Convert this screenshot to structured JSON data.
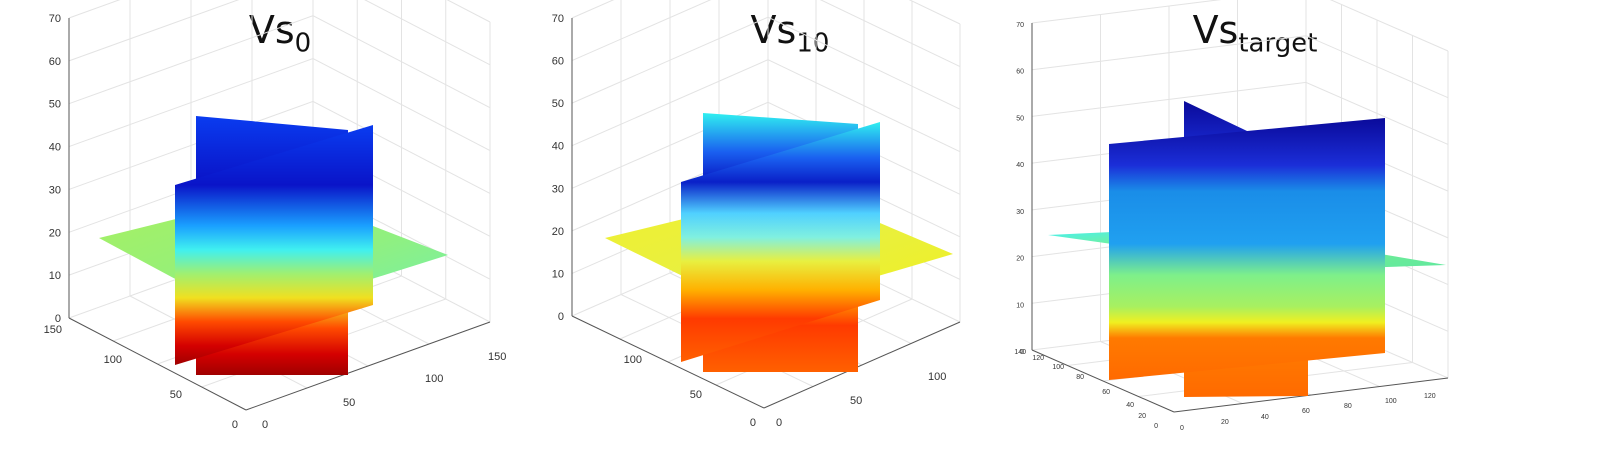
{
  "chart_data": [
    {
      "type": "3d-slice",
      "title_base": "Vs",
      "title_sub": "0",
      "z_ticks": [
        "0",
        "10",
        "20",
        "30",
        "40",
        "50",
        "60",
        "70"
      ],
      "x_ticks": [
        "0",
        "50",
        "100",
        "150"
      ],
      "y_ticks": [
        "0",
        "50",
        "100",
        "150"
      ],
      "zlim": [
        0,
        70
      ],
      "xlim": [
        0,
        150
      ],
      "ylim": [
        0,
        150
      ],
      "grid": true,
      "colormap": "jet"
    },
    {
      "type": "3d-slice",
      "title_base": "Vs",
      "title_sub": "10",
      "z_ticks": [
        "0",
        "10",
        "20",
        "30",
        "40",
        "50",
        "60",
        "70"
      ],
      "x_ticks": [
        "0",
        "50",
        "100"
      ],
      "y_ticks": [
        "0",
        "50",
        "100"
      ],
      "zlim": [
        0,
        70
      ],
      "xlim": [
        0,
        150
      ],
      "ylim": [
        0,
        150
      ],
      "grid": true,
      "colormap": "jet"
    },
    {
      "type": "3d-slice",
      "title_base": "Vs",
      "title_sub": "target",
      "z_ticks": [
        "0",
        "10",
        "20",
        "30",
        "40",
        "50",
        "60",
        "70"
      ],
      "x_ticks": [
        "0",
        "20",
        "40",
        "60",
        "80",
        "100",
        "120"
      ],
      "y_ticks": [
        "0",
        "20",
        "40",
        "60",
        "80",
        "100",
        "120",
        "140"
      ],
      "zlim": [
        0,
        70
      ],
      "xlim": [
        0,
        120
      ],
      "ylim": [
        0,
        140
      ],
      "grid": true,
      "colormap": "jet"
    }
  ]
}
